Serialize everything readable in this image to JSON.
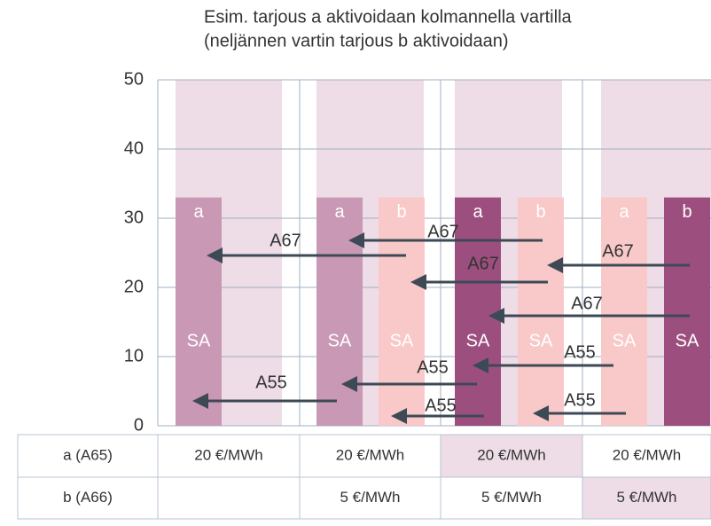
{
  "chart_data": {
    "type": "bar",
    "title": [
      "Esim. tarjous a aktivoidaan kolmannella vartilla",
      "(neljännen vartin tarjous b aktivoidaan)"
    ],
    "ylim": [
      0,
      50
    ],
    "yticks": [
      0,
      10,
      20,
      30,
      40,
      50
    ],
    "grid": true,
    "background_color": "#eedde6",
    "bars": [
      {
        "label": "a",
        "sublabel": "SA",
        "value": 33,
        "color": "#c998b5"
      },
      {
        "label": "a",
        "sublabel": "SA",
        "value": 33,
        "color": "#c998b5"
      },
      {
        "label": "b",
        "sublabel": "SA",
        "value": 33,
        "color": "#f9c9c9"
      },
      {
        "label": "a",
        "sublabel": "SA",
        "value": 33,
        "color": "#9c4f7e"
      },
      {
        "label": "b",
        "sublabel": "SA",
        "value": 33,
        "color": "#f9c9c9"
      },
      {
        "label": "a",
        "sublabel": "SA",
        "value": 33,
        "color": "#f9c9c9"
      },
      {
        "label": "b",
        "sublabel": "SA",
        "value": 33,
        "color": "#9c4f7e"
      }
    ],
    "arrows": [
      "A67",
      "A67",
      "A67",
      "A67",
      "A67",
      "A55",
      "A55",
      "A55",
      "A55",
      "A55"
    ]
  },
  "table": {
    "rows": [
      [
        "a (A65)",
        "20 €/MWh",
        "20 €/MWh",
        "20 €/MWh",
        "20 €/MWh"
      ],
      [
        "b (A66)",
        null,
        "5 €/MWh",
        "5 €/MWh",
        "5 €/MWh"
      ]
    ]
  }
}
